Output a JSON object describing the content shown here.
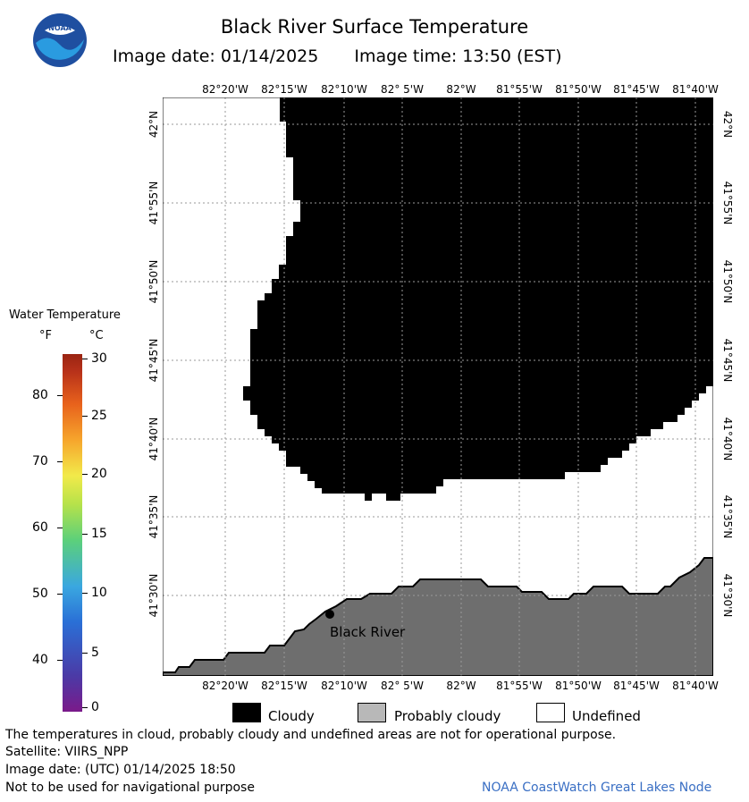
{
  "header": {
    "title": "Black River Surface Temperature",
    "image_date": "Image date: 01/14/2025",
    "image_time": "Image time: 13:50 (EST)",
    "logo_text": "NOAA"
  },
  "map": {
    "longitude_labels": [
      "82°20'W",
      "82°15'W",
      "82°10'W",
      "82° 5'W",
      "82°W",
      "81°55'W",
      "81°50'W",
      "81°45'W",
      "81°40'W"
    ],
    "latitude_labels": [
      "42°N",
      "41°55'N",
      "41°50'N",
      "41°45'N",
      "41°40'N",
      "41°35'N",
      "41°30'N"
    ],
    "place": {
      "name": "Black River"
    },
    "colors": {
      "cloud": "#000000",
      "probably_cloudy": "#6e6e6e",
      "undefined": "#ffffff",
      "grid": "#9a9a9a"
    }
  },
  "legend": {
    "title": "Water Temperature",
    "unit_f": "°F",
    "unit_c": "°C",
    "fahrenheit_ticks": [
      "80",
      "70",
      "60",
      "50",
      "40"
    ],
    "celsius_ticks": [
      "30",
      "25",
      "20",
      "15",
      "10",
      "5",
      "0"
    ],
    "cloud_label": "Cloudy",
    "probably_cloudy_label": "Probably cloudy",
    "undefined_label": "Undefined"
  },
  "footer": {
    "note": "The temperatures in cloud, probably cloudy and undefined areas are not for operational purpose.",
    "satellite": "Satellite: VIIRS_NPP",
    "utc_date": "Image date: (UTC) 01/14/2025  18:50",
    "nav_warning": "Not to be used for navigational purpose",
    "credit": "NOAA CoastWatch Great Lakes Node"
  }
}
